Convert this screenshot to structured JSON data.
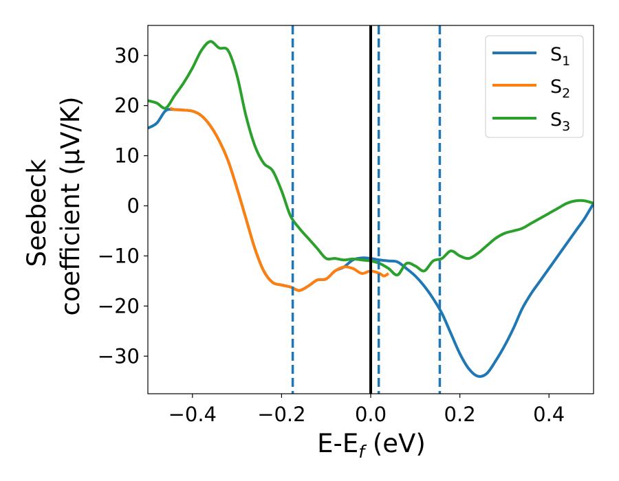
{
  "chart_data": {
    "type": "line",
    "xlabel": "E-E_f (eV)",
    "ylabel_line1": "Seebeck",
    "ylabel_line2": "coefficient  (μV/K)",
    "xlim": [
      -0.5,
      0.5
    ],
    "ylim": [
      -37.5,
      36
    ],
    "x_ticks": [
      -0.4,
      -0.2,
      0.0,
      0.2,
      0.4
    ],
    "x_tick_labels": [
      "−0.4",
      "−0.2",
      "0.0",
      "0.2",
      "0.4"
    ],
    "y_ticks": [
      30,
      20,
      10,
      0,
      -10,
      -20,
      -30
    ],
    "y_tick_labels": [
      "30",
      "20",
      "10",
      "0",
      "−10",
      "−20",
      "−30"
    ],
    "grid": false,
    "legend_position": "top-right",
    "vertical_lines": [
      {
        "x": 0.0,
        "style": "solid",
        "color": "#000000"
      },
      {
        "x": -0.175,
        "style": "dashed",
        "color": "#1f77b4"
      },
      {
        "x": 0.018,
        "style": "dashed",
        "color": "#1f77b4"
      },
      {
        "x": 0.155,
        "style": "dashed",
        "color": "#1f77b4"
      }
    ],
    "series": [
      {
        "name": "S1",
        "color": "#1f77b4",
        "x": [
          -0.5,
          -0.48,
          -0.46,
          -0.44,
          -0.42,
          -0.4,
          -0.38,
          -0.36,
          -0.34,
          -0.32,
          -0.3,
          -0.28,
          -0.26,
          -0.24,
          -0.22,
          -0.2,
          -0.18,
          -0.16,
          -0.14,
          -0.12,
          -0.1,
          -0.08,
          -0.06,
          -0.04,
          -0.02,
          0.0,
          0.02,
          0.04,
          0.06,
          0.08,
          0.1,
          0.12,
          0.14,
          0.16,
          0.18,
          0.2,
          0.22,
          0.24,
          0.26,
          0.28,
          0.3,
          0.32,
          0.34,
          0.36,
          0.38,
          0.4,
          0.42,
          0.44,
          0.46,
          0.48,
          0.5
        ],
        "values": [
          15.5,
          16.5,
          19.0,
          19.2,
          19.1,
          18.9,
          18.0,
          16.0,
          13.0,
          9.0,
          3.5,
          -2.5,
          -8.5,
          -13.0,
          -15.3,
          -15.8,
          -16.2,
          -16.9,
          -16.0,
          -14.8,
          -14.6,
          -13.0,
          -12.2,
          -10.8,
          -10.4,
          -10.5,
          -10.8,
          -11.0,
          -11.2,
          -12.5,
          -14.0,
          -16.0,
          -18.5,
          -21.5,
          -25.5,
          -29.5,
          -32.5,
          -34.0,
          -33.5,
          -31.0,
          -28.0,
          -24.5,
          -20.5,
          -17.5,
          -15.0,
          -12.5,
          -10.0,
          -7.5,
          -5.0,
          -2.5,
          0.5
        ]
      },
      {
        "name": "S2",
        "color": "#ff7f0e",
        "x": [
          -0.45,
          -0.44,
          -0.42,
          -0.4,
          -0.38,
          -0.36,
          -0.34,
          -0.32,
          -0.3,
          -0.28,
          -0.26,
          -0.24,
          -0.22,
          -0.2,
          -0.18,
          -0.16,
          -0.14,
          -0.12,
          -0.1,
          -0.08,
          -0.06,
          -0.04,
          -0.02,
          0.0,
          0.02,
          0.03,
          0.04
        ],
        "values": [
          19.5,
          19.2,
          19.1,
          18.9,
          18.0,
          16.0,
          13.0,
          9.0,
          3.5,
          -2.5,
          -8.5,
          -13.0,
          -15.3,
          -15.8,
          -16.2,
          -16.9,
          -16.0,
          -14.8,
          -14.6,
          -13.0,
          -12.2,
          -12.5,
          -13.5,
          -13.0,
          -13.5,
          -14.0,
          -13.5
        ]
      },
      {
        "name": "S3",
        "color": "#2ca02c",
        "x": [
          -0.5,
          -0.48,
          -0.46,
          -0.44,
          -0.42,
          -0.4,
          -0.38,
          -0.36,
          -0.34,
          -0.32,
          -0.3,
          -0.28,
          -0.26,
          -0.24,
          -0.22,
          -0.2,
          -0.18,
          -0.16,
          -0.14,
          -0.12,
          -0.1,
          -0.08,
          -0.06,
          -0.04,
          -0.02,
          0.0,
          0.02,
          0.04,
          0.06,
          0.08,
          0.1,
          0.12,
          0.14,
          0.16,
          0.18,
          0.2,
          0.22,
          0.24,
          0.26,
          0.28,
          0.3,
          0.32,
          0.34,
          0.36,
          0.38,
          0.4,
          0.42,
          0.44,
          0.46,
          0.48,
          0.5
        ],
        "values": [
          21.0,
          20.5,
          19.5,
          22.0,
          24.5,
          27.5,
          31.0,
          32.8,
          31.5,
          31.0,
          26.0,
          18.0,
          12.0,
          8.5,
          7.0,
          3.0,
          -2.0,
          -4.5,
          -6.5,
          -8.5,
          -10.5,
          -10.5,
          -10.8,
          -10.6,
          -10.8,
          -11.0,
          -11.5,
          -12.5,
          -13.8,
          -11.5,
          -12.0,
          -13.0,
          -11.0,
          -10.5,
          -9.0,
          -10.0,
          -10.5,
          -9.5,
          -8.0,
          -6.5,
          -5.5,
          -5.0,
          -4.5,
          -3.5,
          -2.5,
          -1.5,
          -0.5,
          0.5,
          1.0,
          1.0,
          0.5
        ]
      }
    ]
  }
}
